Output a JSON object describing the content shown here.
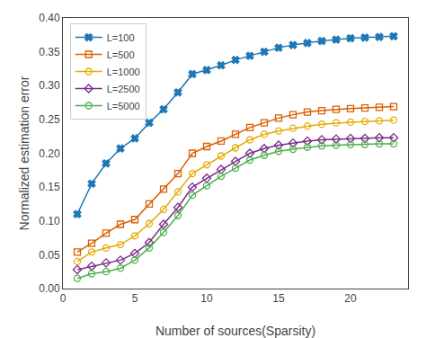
{
  "chart_data": {
    "type": "line",
    "x_label": "Number of sources(Sparsity)",
    "y_label": "Normalized estimation error",
    "x": [
      1,
      2,
      3,
      4,
      5,
      6,
      7,
      8,
      9,
      10,
      11,
      12,
      13,
      14,
      15,
      16,
      17,
      18,
      19,
      20,
      21,
      22,
      23
    ],
    "series": [
      {
        "name": "L=100",
        "color": "#1f77b4",
        "marker": "x",
        "values": [
          0.11,
          0.155,
          0.185,
          0.207,
          0.222,
          0.245,
          0.265,
          0.29,
          0.317,
          0.323,
          0.33,
          0.338,
          0.344,
          0.35,
          0.356,
          0.36,
          0.363,
          0.366,
          0.368,
          0.37,
          0.371,
          0.372,
          0.373
        ]
      },
      {
        "name": "L=500",
        "color": "#d95f02",
        "marker": "square",
        "values": [
          0.054,
          0.067,
          0.082,
          0.095,
          0.102,
          0.125,
          0.147,
          0.17,
          0.2,
          0.21,
          0.218,
          0.228,
          0.238,
          0.245,
          0.252,
          0.257,
          0.261,
          0.263,
          0.265,
          0.266,
          0.267,
          0.268,
          0.269
        ]
      },
      {
        "name": "L=1000",
        "color": "#e6ab02",
        "marker": "circle",
        "values": [
          0.04,
          0.054,
          0.06,
          0.065,
          0.078,
          0.096,
          0.117,
          0.143,
          0.17,
          0.183,
          0.196,
          0.208,
          0.22,
          0.228,
          0.233,
          0.237,
          0.24,
          0.243,
          0.245,
          0.246,
          0.247,
          0.248,
          0.249
        ]
      },
      {
        "name": "L=2500",
        "color": "#7b2d8b",
        "marker": "diamond",
        "values": [
          0.028,
          0.033,
          0.038,
          0.042,
          0.052,
          0.068,
          0.095,
          0.12,
          0.15,
          0.163,
          0.176,
          0.188,
          0.2,
          0.207,
          0.212,
          0.215,
          0.218,
          0.22,
          0.221,
          0.222,
          0.222,
          0.223,
          0.223
        ]
      },
      {
        "name": "L=5000",
        "color": "#4daf4a",
        "marker": "circle",
        "values": [
          0.015,
          0.022,
          0.025,
          0.03,
          0.042,
          0.06,
          0.083,
          0.108,
          0.138,
          0.152,
          0.166,
          0.178,
          0.19,
          0.197,
          0.203,
          0.206,
          0.209,
          0.211,
          0.212,
          0.213,
          0.213,
          0.214,
          0.214
        ]
      }
    ],
    "xlim": [
      0,
      24
    ],
    "ylim": [
      0,
      0.4
    ],
    "xticks": [
      0,
      5,
      10,
      15,
      20
    ],
    "yticks": [
      {
        "value": 0,
        "label": "0.00"
      },
      0.05,
      {
        "value": 0.1,
        "label": "0.10"
      },
      0.15,
      {
        "value": 0.2,
        "label": "0.20"
      },
      0.25,
      {
        "value": 0.3,
        "label": "0.30"
      },
      0.35,
      {
        "value": 0.4,
        "label": "0.40"
      }
    ],
    "grid": false,
    "legend": "upper left"
  }
}
